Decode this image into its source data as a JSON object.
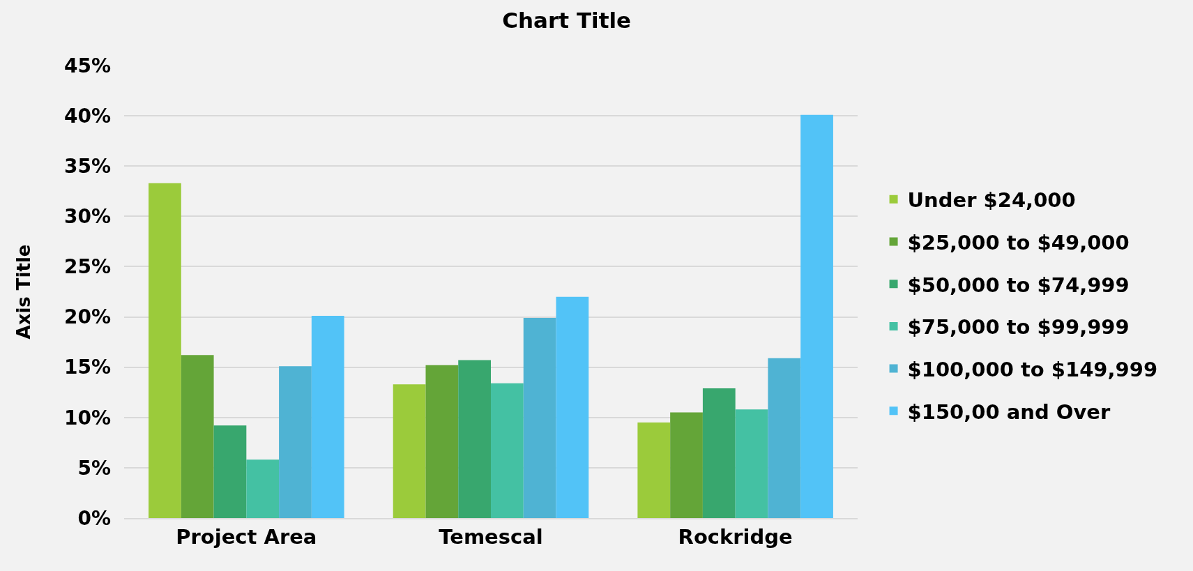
{
  "chart_data": {
    "type": "bar",
    "title": "Chart Title",
    "ylabel": "Axis Title",
    "categories": [
      "Project Area",
      "Temescal",
      "Rockridge"
    ],
    "series": [
      {
        "name": "Under $24,000",
        "color": "#9bcb3b",
        "values": [
          33.3,
          13.3,
          9.5
        ]
      },
      {
        "name": "$25,000 to $49,000",
        "color": "#64a538",
        "values": [
          16.2,
          15.2,
          10.5
        ]
      },
      {
        "name": "$50,000 to $74,999",
        "color": "#38a76e",
        "values": [
          9.2,
          15.7,
          12.9
        ]
      },
      {
        "name": "$75,000 to $99,999",
        "color": "#44c1a3",
        "values": [
          5.8,
          13.4,
          10.8
        ]
      },
      {
        "name": "$100,000 to $149,999",
        "color": "#4fb3d3",
        "values": [
          15.1,
          19.9,
          15.9
        ]
      },
      {
        "name": "$150,00 and Over",
        "color": "#52c3f7",
        "values": [
          20.1,
          22.0,
          40.1
        ]
      }
    ],
    "ylim": [
      0,
      45
    ],
    "yticks": [
      {
        "value": 0,
        "label": "0%"
      },
      {
        "value": 5,
        "label": "5%"
      },
      {
        "value": 10,
        "label": "10%"
      },
      {
        "value": 15,
        "label": "15%"
      },
      {
        "value": 20,
        "label": "20%"
      },
      {
        "value": 25,
        "label": "25%"
      },
      {
        "value": 30,
        "label": "30%"
      },
      {
        "value": 35,
        "label": "35%"
      },
      {
        "value": 40,
        "label": "40%"
      },
      {
        "value": 45,
        "label": "45%"
      }
    ],
    "grid": "y",
    "legend": "right"
  }
}
